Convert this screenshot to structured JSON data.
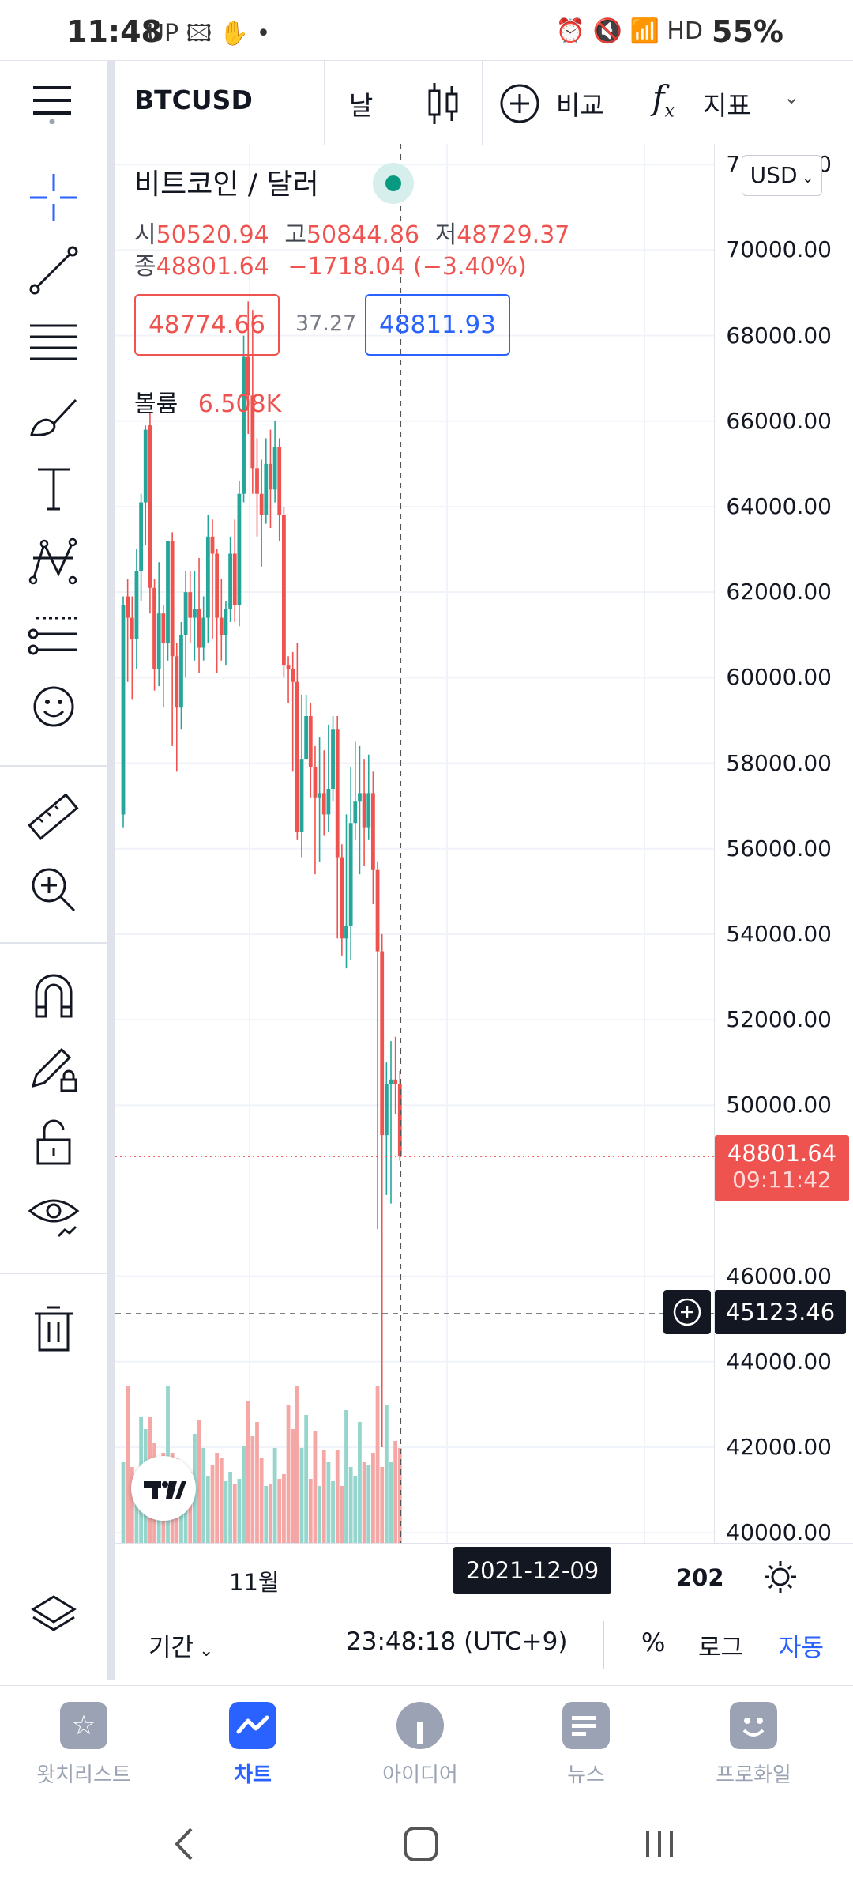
{
  "status": {
    "time": "11:48",
    "left_icons": "UP 🖾 ✋ •",
    "battery": "55%",
    "right_icons": "⏰ 🔇 📶 HD"
  },
  "toolbar": {
    "symbol": "BTCUSD",
    "interval": "날",
    "compare": "비교",
    "indicators": "지표"
  },
  "legend": {
    "title": "비트코인 / 달러",
    "o_label": "시",
    "o": "50520.94",
    "h_label": "고",
    "h": "50844.86",
    "l_label": "저",
    "l": "48729.37",
    "c_label": "종",
    "c": "48801.64",
    "change": "−1718.04 (−3.40%)",
    "bid": "48774.66",
    "spread": "37.27",
    "ask": "48811.93",
    "volume_label": "볼륨",
    "volume": "6.508K"
  },
  "currency": "USD",
  "price_axis": {
    "ticks": [
      "72000.00",
      "70000.00",
      "68000.00",
      "66000.00",
      "64000.00",
      "62000.00",
      "60000.00",
      "58000.00",
      "56000.00",
      "54000.00",
      "52000.00",
      "50000.00",
      "46000.00",
      "44000.00",
      "42000.00",
      "40000.00"
    ],
    "last_price": "48801.64",
    "countdown": "09:11:42",
    "crosshair_price": "45123.46"
  },
  "time_axis": {
    "month_label": "11월",
    "crosshair_date": "2021-12-09",
    "year_label": "202"
  },
  "bottom": {
    "range": "기간",
    "clock": "23:48:18 (UTC+9)",
    "percent": "%",
    "log": "로그",
    "auto": "자동"
  },
  "nav": [
    {
      "label": "왓치리스트",
      "icon": "star-icon"
    },
    {
      "label": "차트",
      "icon": "chart-icon"
    },
    {
      "label": "아이디어",
      "icon": "bulb-icon"
    },
    {
      "label": "뉴스",
      "icon": "news-icon"
    },
    {
      "label": "프로화일",
      "icon": "smile-icon"
    }
  ],
  "colors": {
    "up": "#26a69a",
    "down": "#ef5350",
    "accent": "#2962ff",
    "up_vol": "#95d5cc",
    "down_vol": "#f4a7a5"
  },
  "chart_data": {
    "type": "candlestick",
    "symbol": "BTCUSD",
    "interval": "1D",
    "ylim": [
      39800,
      72300
    ],
    "candles": [
      [
        56800,
        61700,
        56500,
        61900
      ],
      [
        61900,
        61400,
        59900,
        62300
      ],
      [
        61400,
        60900,
        59500,
        61900
      ],
      [
        60900,
        62500,
        60200,
        63000
      ],
      [
        62500,
        64100,
        61800,
        64300
      ],
      [
        64100,
        65800,
        63100,
        65900
      ],
      [
        65900,
        62100,
        61500,
        66200
      ],
      [
        62100,
        60200,
        59700,
        62300
      ],
      [
        60200,
        61500,
        59800,
        62700
      ],
      [
        61500,
        60800,
        59300,
        61700
      ],
      [
        60800,
        63200,
        60400,
        63200
      ],
      [
        63200,
        60500,
        58400,
        63400
      ],
      [
        60500,
        59300,
        57800,
        60800
      ],
      [
        59300,
        61000,
        58800,
        61300
      ],
      [
        61000,
        62000,
        60000,
        62500
      ],
      [
        62000,
        61400,
        60800,
        62500
      ],
      [
        61400,
        61600,
        60400,
        62500
      ],
      [
        61600,
        60700,
        60100,
        62800
      ],
      [
        60700,
        61400,
        60400,
        61900
      ],
      [
        61400,
        63300,
        60800,
        63800
      ],
      [
        63300,
        62900,
        60900,
        63700
      ],
      [
        62900,
        61400,
        60100,
        63000
      ],
      [
        61400,
        61000,
        60400,
        62300
      ],
      [
        61000,
        61600,
        60300,
        61800
      ],
      [
        61600,
        62900,
        61300,
        63300
      ],
      [
        62900,
        61700,
        61300,
        63700
      ],
      [
        61700,
        64300,
        61200,
        64600
      ],
      [
        64300,
        67500,
        64100,
        68000
      ],
      [
        67500,
        66600,
        65700,
        68800
      ],
      [
        66600,
        64900,
        64300,
        68600
      ],
      [
        64900,
        64300,
        63300,
        65600
      ],
      [
        64300,
        63800,
        62600,
        65100
      ],
      [
        63800,
        65000,
        63600,
        65600
      ],
      [
        65000,
        64400,
        63500,
        65800
      ],
      [
        64400,
        65400,
        64100,
        66000
      ],
      [
        65400,
        63800,
        63200,
        65600
      ],
      [
        63800,
        60300,
        60000,
        64000
      ],
      [
        60300,
        60200,
        59400,
        60500
      ],
      [
        60200,
        59900,
        57800,
        60600
      ],
      [
        59900,
        56400,
        56200,
        60800
      ],
      [
        56400,
        58100,
        55800,
        59600
      ],
      [
        58100,
        59100,
        58100,
        59600
      ],
      [
        59100,
        57900,
        57200,
        59400
      ],
      [
        57900,
        57200,
        55400,
        58400
      ],
      [
        57200,
        57300,
        55700,
        58600
      ],
      [
        57300,
        56800,
        56300,
        58300
      ],
      [
        56800,
        57400,
        56400,
        58900
      ],
      [
        57400,
        58800,
        57100,
        59100
      ],
      [
        58800,
        55800,
        53900,
        59100
      ],
      [
        55800,
        53900,
        53500,
        56100
      ],
      [
        53900,
        54200,
        53200,
        56800
      ],
      [
        54200,
        56600,
        53400,
        57900
      ],
      [
        56600,
        57100,
        56200,
        58500
      ],
      [
        57100,
        57300,
        55400,
        58400
      ],
      [
        57300,
        56500,
        55600,
        58100
      ],
      [
        56500,
        57300,
        56200,
        58200
      ],
      [
        57300,
        55500,
        54700,
        57800
      ],
      [
        55500,
        53600,
        47100,
        55700
      ],
      [
        53600,
        49300,
        42000,
        54000
      ],
      [
        49300,
        50500,
        47900,
        51000
      ],
      [
        50500,
        50600,
        47700,
        51500
      ],
      [
        50600,
        50500,
        49800,
        51600
      ],
      [
        50500,
        48800,
        48700,
        50800
      ]
    ],
    "volume_relative": [
      0.34,
      0.66,
      0.32,
      0.27,
      0.53,
      0.48,
      0.53,
      0.42,
      0.3,
      0.38,
      0.66,
      0.38,
      0.36,
      0.22,
      0.28,
      0.3,
      0.46,
      0.52,
      0.4,
      0.28,
      0.33,
      0.38,
      0.36,
      0.26,
      0.3,
      0.25,
      0.27,
      0.41,
      0.6,
      0.45,
      0.51,
      0.36,
      0.24,
      0.25,
      0.4,
      0.27,
      0.29,
      0.58,
      0.48,
      0.66,
      0.4,
      0.54,
      0.27,
      0.47,
      0.24,
      0.39,
      0.34,
      0.26,
      0.39,
      0.24,
      0.56,
      0.32,
      0.28,
      0.51,
      0.34,
      0.33,
      0.38,
      0.66,
      0.32,
      0.58,
      0.34,
      0.43,
      0.4
    ]
  }
}
